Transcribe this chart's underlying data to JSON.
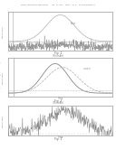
{
  "page_bg": "#ffffff",
  "header_text": "Patent Application Publication    Aug. 8, 2013   Sheet 1 of 8   US 2013/0194068 A1",
  "fig1_label": "Fig. 1",
  "fig1_sublabel": "(Prior Art)",
  "fig2_label": "Fig. 2",
  "fig2_sublabel": "(Prior Art)",
  "fig3_label": "Fig. 3",
  "panel_border_color": "#999999",
  "line_color": "#aaaaaa",
  "dark_line": "#777777",
  "noise_color": "#888888"
}
